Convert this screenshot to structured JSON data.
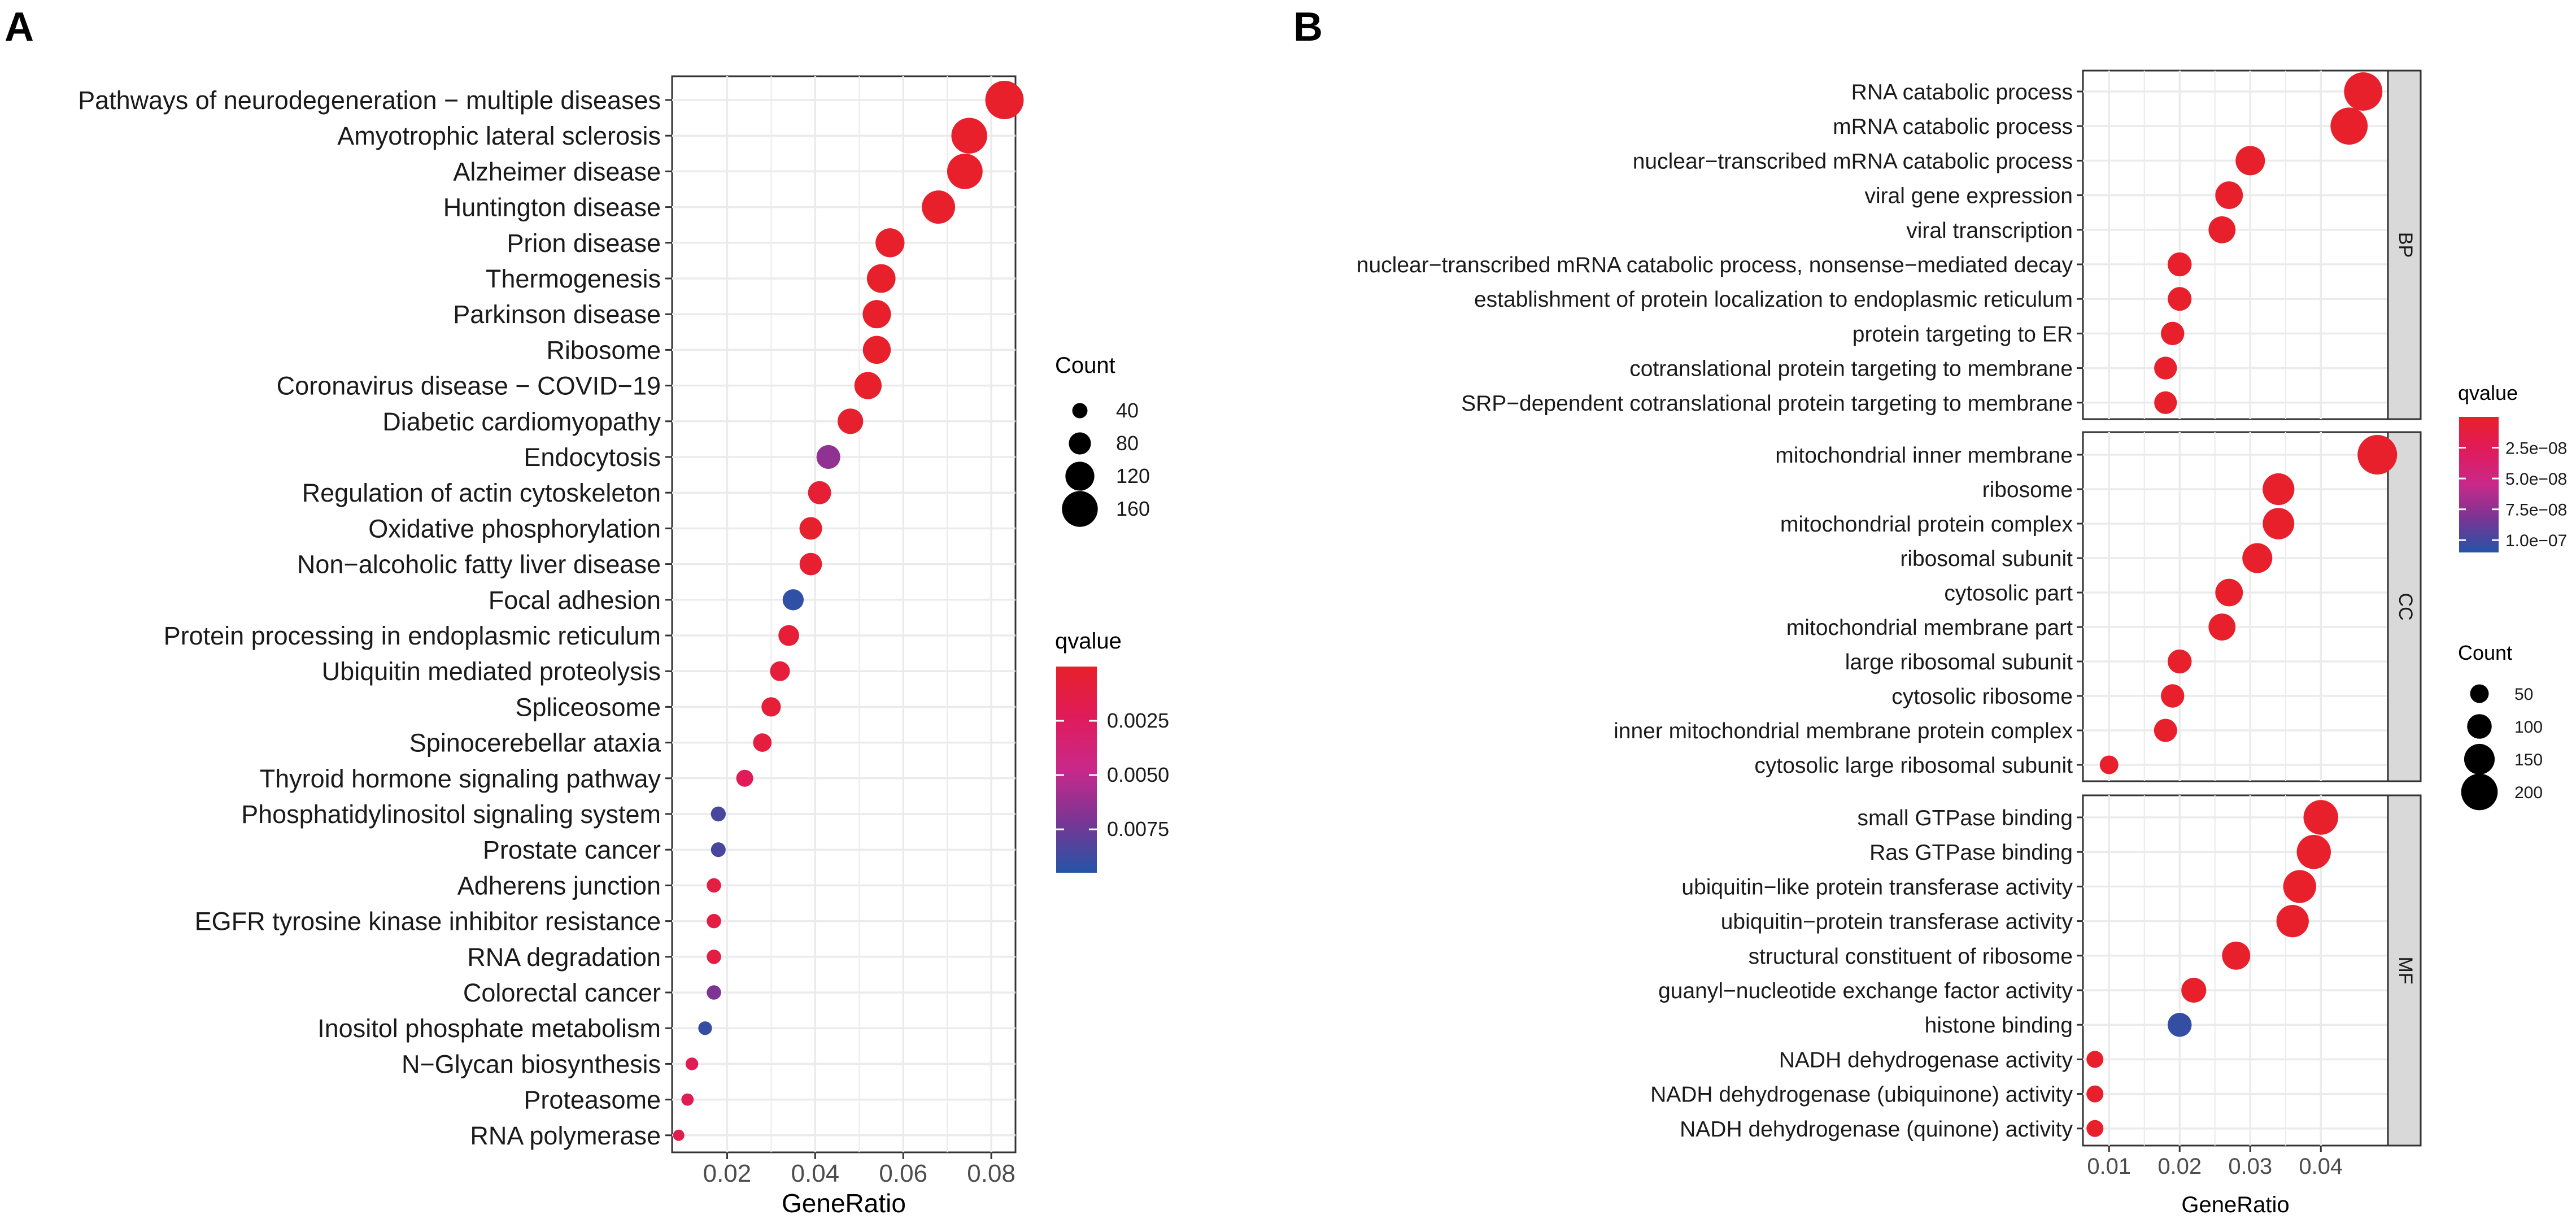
{
  "panels": {
    "a": {
      "letter": "A"
    },
    "b": {
      "letter": "B"
    }
  },
  "colors": {
    "q_low": "#e8202a",
    "q_mid": "#7a3594",
    "q_high": "#2454a6",
    "panel_bg": "#ffffff",
    "grid": "#ebebeb",
    "strip": "#d9d9d9"
  },
  "chart_data": [
    {
      "id": "kegg",
      "type": "scatter",
      "title": "",
      "xlabel": "GeneRatio",
      "ylabel": "",
      "xlim": [
        0.0075,
        0.0855
      ],
      "xticks": [
        0.02,
        0.04,
        0.06,
        0.08
      ],
      "xtick_labels": [
        "0.02",
        "0.04",
        "0.06",
        "0.08"
      ],
      "size_legend": {
        "title": "Count",
        "breaks": [
          40,
          80,
          120,
          160
        ],
        "labels": [
          "40",
          "80",
          "120",
          "160"
        ],
        "range": [
          10,
          175
        ]
      },
      "color_legend": {
        "title": "qvalue",
        "range": [
          0,
          0.0095
        ],
        "breaks": [
          0.0025,
          0.005,
          0.0075
        ],
        "labels": [
          "0.0025",
          "0.0050",
          "0.0075"
        ]
      },
      "points": [
        {
          "term": "Pathways of neurodegeneration − multiple diseases",
          "gene_ratio": 0.083,
          "count": 175,
          "qvalue": 0.0001
        },
        {
          "term": "Amyotrophic lateral sclerosis",
          "gene_ratio": 0.075,
          "count": 160,
          "qvalue": 0.0001
        },
        {
          "term": "Alzheimer disease",
          "gene_ratio": 0.074,
          "count": 158,
          "qvalue": 0.0001
        },
        {
          "term": "Huntington disease",
          "gene_ratio": 0.068,
          "count": 145,
          "qvalue": 0.0001
        },
        {
          "term": "Prion disease",
          "gene_ratio": 0.057,
          "count": 120,
          "qvalue": 0.0001
        },
        {
          "term": "Thermogenesis",
          "gene_ratio": 0.055,
          "count": 118,
          "qvalue": 0.0001
        },
        {
          "term": "Parkinson disease",
          "gene_ratio": 0.054,
          "count": 116,
          "qvalue": 0.0001
        },
        {
          "term": "Ribosome",
          "gene_ratio": 0.054,
          "count": 114,
          "qvalue": 0.0001
        },
        {
          "term": "Coronavirus disease − COVID−19",
          "gene_ratio": 0.052,
          "count": 110,
          "qvalue": 0.0001
        },
        {
          "term": "Diabetic cardiomyopathy",
          "gene_ratio": 0.048,
          "count": 100,
          "qvalue": 0.0002
        },
        {
          "term": "Endocytosis",
          "gene_ratio": 0.043,
          "count": 90,
          "qvalue": 0.0065
        },
        {
          "term": "Regulation of actin cytoskeleton",
          "gene_ratio": 0.041,
          "count": 86,
          "qvalue": 0.0005
        },
        {
          "term": "Oxidative phosphorylation",
          "gene_ratio": 0.039,
          "count": 83,
          "qvalue": 0.0002
        },
        {
          "term": "Non−alcoholic fatty liver disease",
          "gene_ratio": 0.039,
          "count": 82,
          "qvalue": 0.0003
        },
        {
          "term": "Focal adhesion",
          "gene_ratio": 0.035,
          "count": 74,
          "qvalue": 0.0092
        },
        {
          "term": "Protein processing in endoplasmic reticulum",
          "gene_ratio": 0.034,
          "count": 72,
          "qvalue": 0.0006
        },
        {
          "term": "Ubiquitin mediated proteolysis",
          "gene_ratio": 0.032,
          "count": 67,
          "qvalue": 0.0008
        },
        {
          "term": "Spliceosome",
          "gene_ratio": 0.03,
          "count": 64,
          "qvalue": 0.0007
        },
        {
          "term": "Spinocerebellar ataxia",
          "gene_ratio": 0.028,
          "count": 59,
          "qvalue": 0.001
        },
        {
          "term": "Thyroid hormone signaling pathway",
          "gene_ratio": 0.024,
          "count": 50,
          "qvalue": 0.0022
        },
        {
          "term": "Phosphatidylinositol signaling system",
          "gene_ratio": 0.018,
          "count": 38,
          "qvalue": 0.0085
        },
        {
          "term": "Prostate cancer",
          "gene_ratio": 0.018,
          "count": 37,
          "qvalue": 0.0085
        },
        {
          "term": "Adherens junction",
          "gene_ratio": 0.017,
          "count": 35,
          "qvalue": 0.0012
        },
        {
          "term": "EGFR tyrosine kinase inhibitor resistance",
          "gene_ratio": 0.017,
          "count": 35,
          "qvalue": 0.0012
        },
        {
          "term": "RNA degradation",
          "gene_ratio": 0.017,
          "count": 35,
          "qvalue": 0.0012
        },
        {
          "term": "Colorectal cancer",
          "gene_ratio": 0.017,
          "count": 35,
          "qvalue": 0.007
        },
        {
          "term": "Inositol phosphate metabolism",
          "gene_ratio": 0.015,
          "count": 31,
          "qvalue": 0.009
        },
        {
          "term": "N−Glycan biosynthesis",
          "gene_ratio": 0.012,
          "count": 25,
          "qvalue": 0.002
        },
        {
          "term": "Proteasome",
          "gene_ratio": 0.011,
          "count": 23,
          "qvalue": 0.002
        },
        {
          "term": "RNA polymerase",
          "gene_ratio": 0.009,
          "count": 17,
          "qvalue": 0.0015
        }
      ]
    },
    {
      "id": "go",
      "type": "scatter",
      "title": "",
      "xlabel": "GeneRatio",
      "ylabel": "",
      "xlim": [
        0.0063,
        0.0495
      ],
      "xticks": [
        0.01,
        0.02,
        0.03,
        0.04
      ],
      "xtick_labels": [
        "0.01",
        "0.02",
        "0.03",
        "0.04"
      ],
      "size_legend": {
        "title": "Count",
        "breaks": [
          50,
          100,
          150,
          200
        ],
        "labels": [
          "50",
          "100",
          "150",
          "200"
        ],
        "range": [
          30,
          230
        ]
      },
      "color_legend": {
        "title": "qvalue",
        "range": [
          0,
          1.1e-07
        ],
        "breaks": [
          2.5e-08,
          5e-08,
          7.5e-08,
          1e-07
        ],
        "labels": [
          "2.5e−08",
          "5.0e−08",
          "7.5e−08",
          "1.0e−07"
        ]
      },
      "facets": [
        {
          "name": "BP",
          "points": [
            {
              "term": "RNA catabolic process",
              "gene_ratio": 0.046,
              "count": 215,
              "qvalue": 1e-09
            },
            {
              "term": "mRNA catabolic process",
              "gene_ratio": 0.044,
              "count": 205,
              "qvalue": 1e-09
            },
            {
              "term": "nuclear−transcribed mRNA catabolic process",
              "gene_ratio": 0.03,
              "count": 140,
              "qvalue": 1e-09
            },
            {
              "term": "viral gene expression",
              "gene_ratio": 0.027,
              "count": 125,
              "qvalue": 1e-09
            },
            {
              "term": "viral transcription",
              "gene_ratio": 0.026,
              "count": 120,
              "qvalue": 1e-09
            },
            {
              "term": "nuclear−transcribed mRNA catabolic process, nonsense−mediated decay",
              "gene_ratio": 0.02,
              "count": 95,
              "qvalue": 1e-09
            },
            {
              "term": "establishment of protein localization to endoplasmic reticulum",
              "gene_ratio": 0.02,
              "count": 93,
              "qvalue": 1e-09
            },
            {
              "term": "protein targeting to ER",
              "gene_ratio": 0.019,
              "count": 90,
              "qvalue": 1e-09
            },
            {
              "term": "cotranslational protein targeting to membrane",
              "gene_ratio": 0.018,
              "count": 85,
              "qvalue": 1e-09
            },
            {
              "term": "SRP−dependent cotranslational protein targeting to membrane",
              "gene_ratio": 0.018,
              "count": 84,
              "qvalue": 1e-09
            }
          ]
        },
        {
          "name": "CC",
          "points": [
            {
              "term": "mitochondrial inner membrane",
              "gene_ratio": 0.048,
              "count": 225,
              "qvalue": 1e-09
            },
            {
              "term": "ribosome",
              "gene_ratio": 0.034,
              "count": 160,
              "qvalue": 1e-09
            },
            {
              "term": "mitochondrial protein complex",
              "gene_ratio": 0.034,
              "count": 158,
              "qvalue": 1e-09
            },
            {
              "term": "ribosomal subunit",
              "gene_ratio": 0.031,
              "count": 145,
              "qvalue": 1e-09
            },
            {
              "term": "cytosolic part",
              "gene_ratio": 0.027,
              "count": 125,
              "qvalue": 1e-09
            },
            {
              "term": "mitochondrial membrane part",
              "gene_ratio": 0.026,
              "count": 120,
              "qvalue": 1e-09
            },
            {
              "term": "large ribosomal subunit",
              "gene_ratio": 0.02,
              "count": 95,
              "qvalue": 1e-09
            },
            {
              "term": "cytosolic ribosome",
              "gene_ratio": 0.019,
              "count": 90,
              "qvalue": 1e-09
            },
            {
              "term": "inner mitochondrial membrane protein complex",
              "gene_ratio": 0.018,
              "count": 88,
              "qvalue": 1e-09
            },
            {
              "term": "cytosolic large ribosomal subunit",
              "gene_ratio": 0.01,
              "count": 50,
              "qvalue": 1e-09
            }
          ]
        },
        {
          "name": "MF",
          "points": [
            {
              "term": "small GTPase binding",
              "gene_ratio": 0.04,
              "count": 185,
              "qvalue": 1e-09
            },
            {
              "term": "Ras GTPase binding",
              "gene_ratio": 0.039,
              "count": 180,
              "qvalue": 1e-09
            },
            {
              "term": "ubiquitin−like protein transferase activity",
              "gene_ratio": 0.037,
              "count": 170,
              "qvalue": 1e-09
            },
            {
              "term": "ubiquitin−protein transferase activity",
              "gene_ratio": 0.036,
              "count": 165,
              "qvalue": 1e-09
            },
            {
              "term": "structural constituent of ribosome",
              "gene_ratio": 0.028,
              "count": 130,
              "qvalue": 1e-09
            },
            {
              "term": "guanyl−nucleotide exchange factor activity",
              "gene_ratio": 0.022,
              "count": 103,
              "qvalue": 1e-09
            },
            {
              "term": "histone binding",
              "gene_ratio": 0.02,
              "count": 95,
              "qvalue": 1.05e-07
            },
            {
              "term": "NADH dehydrogenase activity",
              "gene_ratio": 0.008,
              "count": 36,
              "qvalue": 1e-09
            },
            {
              "term": "NADH dehydrogenase (ubiquinone) activity",
              "gene_ratio": 0.008,
              "count": 36,
              "qvalue": 1e-09
            },
            {
              "term": "NADH dehydrogenase (quinone) activity",
              "gene_ratio": 0.008,
              "count": 36,
              "qvalue": 1e-09
            }
          ]
        }
      ]
    }
  ]
}
